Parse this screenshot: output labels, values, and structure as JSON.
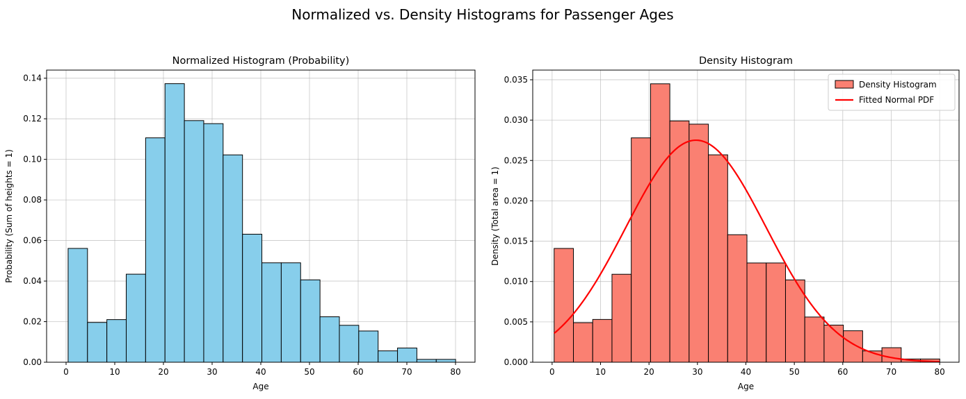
{
  "figure": {
    "suptitle": "Normalized vs. Density Histograms for Passenger Ages"
  },
  "chart_data": [
    {
      "type": "bar",
      "title": "Normalized Histogram (Probability)",
      "xlabel": "Age",
      "ylabel": "Probability (Sum of heights = 1)",
      "bin_edges": [
        0.42,
        4.4,
        8.38,
        12.36,
        16.34,
        20.32,
        24.3,
        28.28,
        32.26,
        36.24,
        40.22,
        44.2,
        48.18,
        52.16,
        56.14,
        60.12,
        64.1,
        68.08,
        72.06,
        76.04,
        80.02
      ],
      "values": [
        0.0561,
        0.0196,
        0.021,
        0.0434,
        0.1106,
        0.1373,
        0.1191,
        0.1176,
        0.1022,
        0.0631,
        0.049,
        0.049,
        0.0406,
        0.0224,
        0.0182,
        0.0154,
        0.0056,
        0.007,
        0.0014,
        0.0014
      ],
      "xlim": [
        -4,
        84
      ],
      "ylim": [
        0,
        0.144
      ],
      "xticks": [
        0,
        10,
        20,
        30,
        40,
        50,
        60,
        70,
        80
      ],
      "xtick_labels": [
        "0",
        "10",
        "20",
        "30",
        "40",
        "50",
        "60",
        "70",
        "80"
      ],
      "yticks": [
        0,
        0.02,
        0.04,
        0.06,
        0.08,
        0.1,
        0.12,
        0.14
      ],
      "ytick_labels": [
        "0.00",
        "0.02",
        "0.04",
        "0.06",
        "0.08",
        "0.10",
        "0.12",
        "0.14"
      ],
      "grid": true,
      "bar_color": "#87ceeb",
      "edge_color": "#000000"
    },
    {
      "type": "bar",
      "title": "Density Histogram",
      "xlabel": "Age",
      "ylabel": "Density (Total area = 1)",
      "bin_edges": [
        0.42,
        4.4,
        8.38,
        12.36,
        16.34,
        20.32,
        24.3,
        28.28,
        32.26,
        36.24,
        40.22,
        44.2,
        48.18,
        52.16,
        56.14,
        60.12,
        64.1,
        68.08,
        72.06,
        76.04,
        80.02
      ],
      "values": [
        0.0141,
        0.0049,
        0.0053,
        0.0109,
        0.0278,
        0.0345,
        0.0299,
        0.0295,
        0.0257,
        0.0158,
        0.0123,
        0.0123,
        0.0102,
        0.0056,
        0.0046,
        0.0039,
        0.0014,
        0.0018,
        0.0004,
        0.0004
      ],
      "xlim": [
        -4,
        84
      ],
      "ylim": [
        0,
        0.0362
      ],
      "xticks": [
        0,
        10,
        20,
        30,
        40,
        50,
        60,
        70,
        80
      ],
      "xtick_labels": [
        "0",
        "10",
        "20",
        "30",
        "40",
        "50",
        "60",
        "70",
        "80"
      ],
      "yticks": [
        0,
        0.005,
        0.01,
        0.015,
        0.02,
        0.025,
        0.03,
        0.035
      ],
      "ytick_labels": [
        "0.000",
        "0.005",
        "0.010",
        "0.015",
        "0.020",
        "0.025",
        "0.030",
        "0.035"
      ],
      "grid": true,
      "bar_color": "#fa8072",
      "edge_color": "#000000",
      "series": [
        {
          "name": "Density Histogram",
          "kind": "bar",
          "color": "#fa8072"
        },
        {
          "name": "Fitted Normal PDF",
          "kind": "line",
          "color": "#ff0000",
          "distribution": "normal",
          "mean": 29.7,
          "std": 14.5,
          "x_range": [
            0.42,
            80.0
          ]
        }
      ],
      "legend": "top-right"
    }
  ]
}
